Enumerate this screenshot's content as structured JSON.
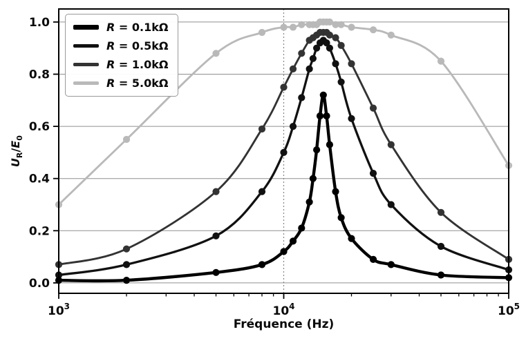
{
  "chart_data": {
    "type": "line",
    "title": "",
    "xlabel": "Fréquence (Hz)",
    "ylabel": "U_R/E_0",
    "ylabel_parts": {
      "var1": "U",
      "sub1": "R",
      "sep": "/",
      "var2": "E",
      "sub2": "0"
    },
    "x_scale": "log",
    "xlim": [
      1000,
      100000
    ],
    "ylim": [
      -0.04,
      1.05
    ],
    "grid": true,
    "grid_color": "#8f8f8f",
    "axis_color": "#000000",
    "legend_position": "upper left",
    "x_ticks": [
      {
        "label_base": "10",
        "label_exp": "3",
        "value": 1000
      },
      {
        "label_base": "10",
        "label_exp": "4",
        "value": 10000
      },
      {
        "label_base": "10",
        "label_exp": "5",
        "value": 100000
      }
    ],
    "y_ticks": [
      {
        "label": "0.0",
        "value": 0.0
      },
      {
        "label": "0.2",
        "value": 0.2
      },
      {
        "label": "0.4",
        "value": 0.4
      },
      {
        "label": "0.6",
        "value": 0.6
      },
      {
        "label": "0.8",
        "value": 0.8
      },
      {
        "label": "1.0",
        "value": 1.0
      }
    ],
    "x": [
      1000,
      2000,
      5000,
      8000,
      10000,
      11000,
      12000,
      13000,
      13500,
      14000,
      14500,
      15000,
      15500,
      16000,
      17000,
      18000,
      20000,
      25000,
      30000,
      50000,
      100000
    ],
    "series": [
      {
        "name": "R = 0.1kΩ",
        "name_var": "R",
        "name_rest": " = 0.1kΩ",
        "color": "#000000",
        "line_width": 4.4,
        "swatch_height": 7,
        "marker": "circle",
        "values": [
          0.01,
          0.01,
          0.04,
          0.07,
          0.12,
          0.16,
          0.21,
          0.31,
          0.4,
          0.51,
          0.64,
          0.72,
          0.64,
          0.53,
          0.35,
          0.25,
          0.17,
          0.09,
          0.07,
          0.03,
          0.02
        ]
      },
      {
        "name": "R = 0.5kΩ",
        "name_var": "R",
        "name_rest": " = 0.5kΩ",
        "color": "#111111",
        "line_width": 3.3,
        "swatch_height": 5,
        "marker": "circle",
        "values": [
          0.03,
          0.07,
          0.18,
          0.35,
          0.5,
          0.6,
          0.71,
          0.82,
          0.86,
          0.9,
          0.92,
          0.93,
          0.92,
          0.9,
          0.84,
          0.77,
          0.63,
          0.42,
          0.3,
          0.14,
          0.05
        ]
      },
      {
        "name": "R = 1.0kΩ",
        "name_var": "R",
        "name_rest": " = 1.0kΩ",
        "color": "#333333",
        "line_width": 2.9,
        "swatch_height": 5,
        "marker": "circle",
        "values": [
          0.07,
          0.13,
          0.35,
          0.59,
          0.75,
          0.82,
          0.88,
          0.93,
          0.94,
          0.95,
          0.96,
          0.96,
          0.96,
          0.95,
          0.94,
          0.91,
          0.84,
          0.67,
          0.53,
          0.27,
          0.09
        ]
      },
      {
        "name": "R = 5.0kΩ",
        "name_var": "R",
        "name_rest": " = 5.0kΩ",
        "color": "#b9b9b9",
        "line_width": 2.9,
        "swatch_height": 5,
        "marker": "circle",
        "values": [
          0.3,
          0.55,
          0.88,
          0.96,
          0.98,
          0.98,
          0.99,
          0.99,
          0.99,
          0.99,
          1.0,
          1.0,
          1.0,
          1.0,
          0.99,
          0.99,
          0.98,
          0.97,
          0.95,
          0.85,
          0.45
        ]
      }
    ]
  }
}
